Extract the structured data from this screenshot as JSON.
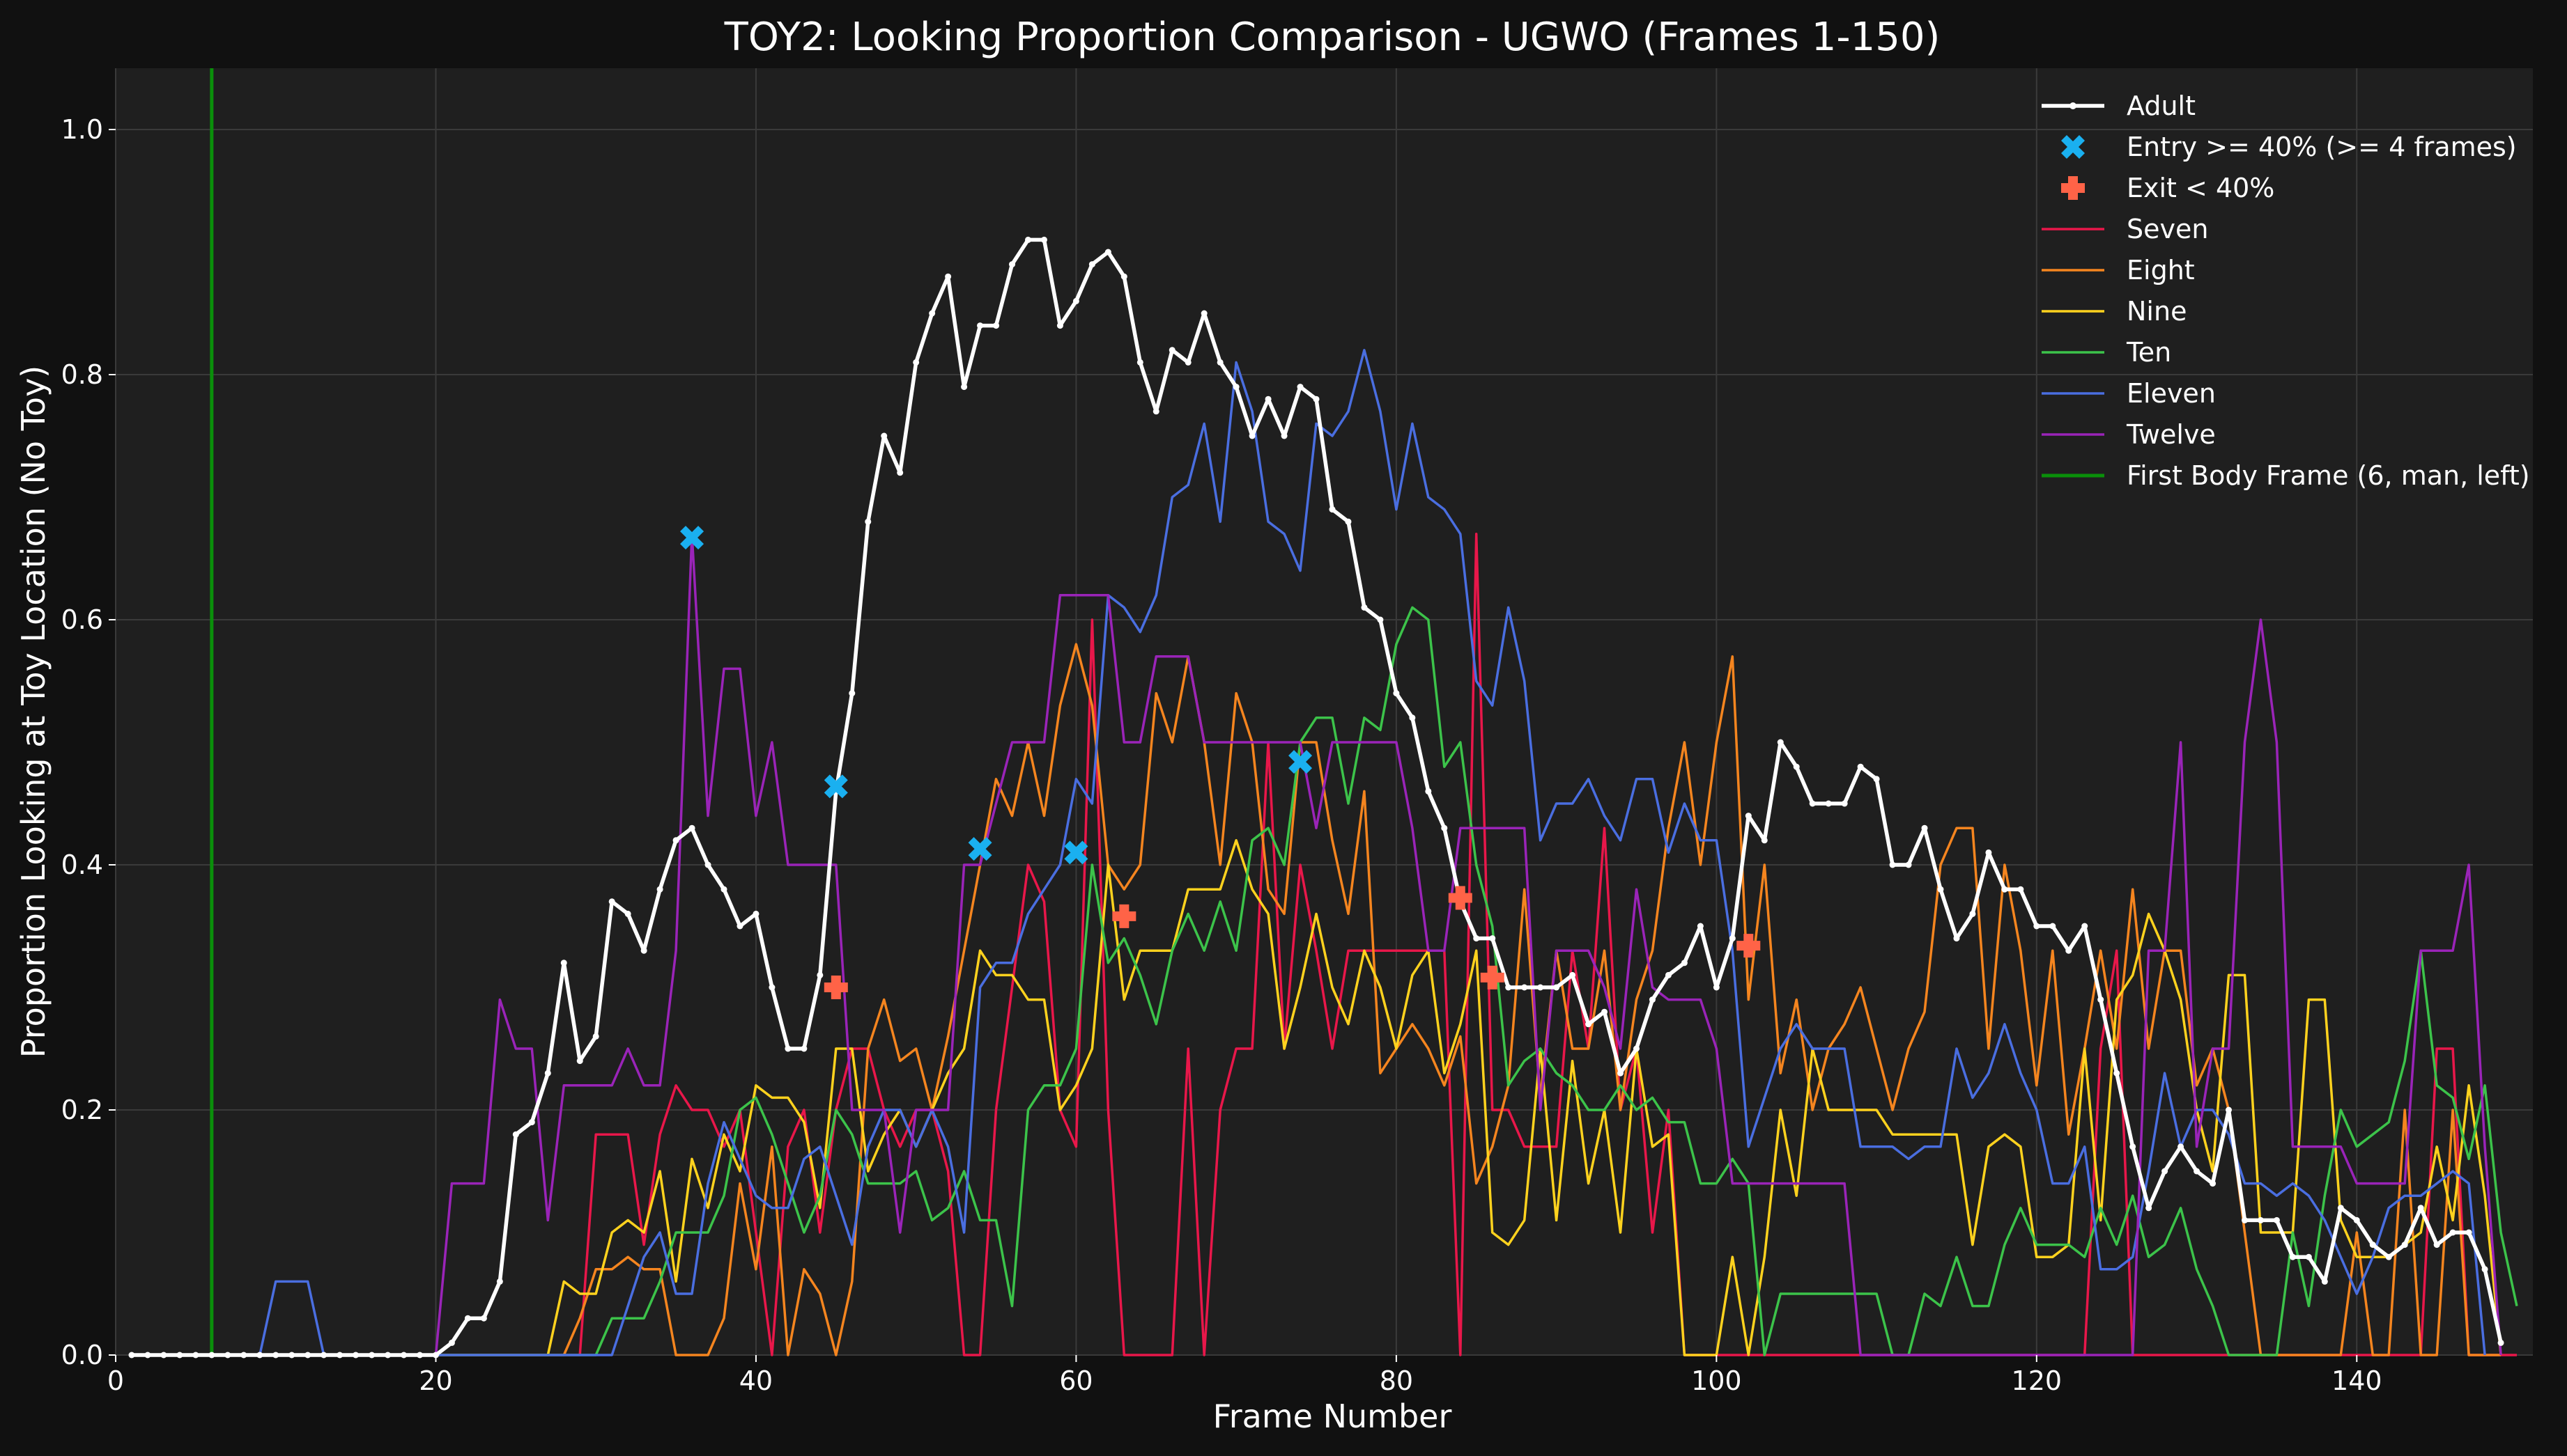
{
  "chart_data": {
    "type": "line",
    "title": "TOY2: Looking Proportion Comparison - UGWO (Frames 1-150)",
    "xlabel": "Frame Number",
    "ylabel": "Proportion Looking at Toy Location (No Toy)",
    "xlim": [
      0,
      151
    ],
    "ylim": [
      0,
      1.05
    ],
    "x_ticks": [
      0,
      20,
      40,
      60,
      80,
      100,
      120,
      140
    ],
    "x_tick_labels": [
      "0",
      "20",
      "40",
      "60",
      "80",
      "100",
      "120",
      "140"
    ],
    "y_ticks": [
      0,
      0.2,
      0.4,
      0.6,
      0.8,
      1.0
    ],
    "y_tick_labels": [
      "0.0",
      "0.2",
      "0.4",
      "0.6",
      "0.8",
      "1.0"
    ],
    "grid": true,
    "legend_position": "top-right",
    "background": "#1f1f1f",
    "adult": {
      "name": "Adult",
      "color": "#ffffff",
      "x_start": 1,
      "values": [
        0,
        0,
        0,
        0,
        0,
        0,
        0,
        0,
        0,
        0,
        0,
        0,
        0,
        0,
        0,
        0,
        0,
        0,
        0,
        0,
        0.01,
        0.03,
        0.03,
        0.06,
        0.18,
        0.19,
        0.23,
        0.32,
        0.24,
        0.26,
        0.37,
        0.36,
        0.33,
        0.38,
        0.42,
        0.43,
        0.4,
        0.38,
        0.35,
        0.36,
        0.3,
        0.25,
        0.25,
        0.31,
        0.46,
        0.54,
        0.68,
        0.75,
        0.72,
        0.81,
        0.85,
        0.88,
        0.79,
        0.84,
        0.84,
        0.89,
        0.91,
        0.91,
        0.84,
        0.86,
        0.89,
        0.9,
        0.88,
        0.81,
        0.77,
        0.82,
        0.81,
        0.85,
        0.81,
        0.79,
        0.75,
        0.78,
        0.75,
        0.79,
        0.78,
        0.69,
        0.68,
        0.61,
        0.6,
        0.54,
        0.52,
        0.46,
        0.43,
        0.37,
        0.34,
        0.34,
        0.3,
        0.3,
        0.3,
        0.3,
        0.31,
        0.27,
        0.28,
        0.23,
        0.25,
        0.29,
        0.31,
        0.32,
        0.35,
        0.3,
        0.34,
        0.44,
        0.42,
        0.5,
        0.48,
        0.45,
        0.45,
        0.45,
        0.48,
        0.47,
        0.4,
        0.4,
        0.43,
        0.38,
        0.34,
        0.36,
        0.41,
        0.38,
        0.38,
        0.35,
        0.35,
        0.33,
        0.35,
        0.29,
        0.23,
        0.17,
        0.12,
        0.15,
        0.17,
        0.15,
        0.14,
        0.2,
        0.11,
        0.11,
        0.11,
        0.08,
        0.08,
        0.06,
        0.12,
        0.11,
        0.09,
        0.08,
        0.09,
        0.12,
        0.09,
        0.1,
        0.1,
        0.07,
        0.01
      ]
    },
    "entry_markers": {
      "name": "Entry >= 40% (>= 4 frames)",
      "color": "#1ab0f0",
      "points": [
        [
          36,
          0.667
        ],
        [
          45,
          0.464
        ],
        [
          54,
          0.413
        ],
        [
          60,
          0.41
        ],
        [
          74,
          0.484
        ]
      ]
    },
    "exit_markers": {
      "name": "Exit < 40%",
      "color": "#ff6347",
      "points": [
        [
          45,
          0.3
        ],
        [
          63,
          0.358
        ],
        [
          84,
          0.373
        ],
        [
          86,
          0.308
        ],
        [
          102,
          0.334
        ]
      ]
    },
    "series": [
      {
        "name": "Seven",
        "color": "#e8174a",
        "x_start": 1,
        "values": [
          0,
          0,
          0,
          0,
          0,
          0,
          0,
          0,
          0,
          0,
          0,
          0,
          0,
          0,
          0,
          0,
          0,
          0,
          0,
          0,
          0,
          0,
          0,
          0,
          0,
          0,
          0,
          0,
          0,
          0.18,
          0.18,
          0.18,
          0.09,
          0.18,
          0.22,
          0.2,
          0.2,
          0.17,
          0.2,
          0.1,
          0,
          0.17,
          0.2,
          0.1,
          0.2,
          0.25,
          0.25,
          0.2,
          0.17,
          0.2,
          0.2,
          0.15,
          0,
          0,
          0.2,
          0.3,
          0.4,
          0.37,
          0.2,
          0.17,
          0.6,
          0.2,
          0,
          0,
          0,
          0,
          0.25,
          0,
          0.2,
          0.25,
          0.25,
          0.5,
          0.25,
          0.4,
          0.33,
          0.25,
          0.33,
          0.33,
          0.33,
          0.33,
          0.33,
          0.33,
          0.33,
          0,
          0.67,
          0.2,
          0.2,
          0.17,
          0.17,
          0.17,
          0.33,
          0.25,
          0.43,
          0.2,
          0.25,
          0.1,
          0.2,
          0,
          0,
          0,
          0,
          0,
          0,
          0,
          0,
          0,
          0,
          0,
          0,
          0,
          0,
          0,
          0,
          0,
          0,
          0,
          0,
          0,
          0,
          0,
          0,
          0,
          0,
          0.25,
          0.33,
          0,
          0,
          0,
          0,
          0,
          0,
          0,
          0,
          0,
          0,
          0,
          0,
          0,
          0,
          0,
          0,
          0,
          0,
          0,
          0.25,
          0.25,
          0,
          0,
          0,
          0
        ]
      },
      {
        "name": "Eight",
        "color": "#f5851f",
        "x_start": 1,
        "values": [
          0,
          0,
          0,
          0,
          0,
          0,
          0,
          0,
          0,
          0,
          0,
          0,
          0,
          0,
          0,
          0,
          0,
          0,
          0,
          0,
          0,
          0,
          0,
          0,
          0,
          0,
          0,
          0,
          0.03,
          0.07,
          0.07,
          0.08,
          0.07,
          0.07,
          0,
          0,
          0,
          0.03,
          0.14,
          0.07,
          0.17,
          0,
          0.07,
          0.05,
          0,
          0.06,
          0.25,
          0.29,
          0.24,
          0.25,
          0.2,
          0.26,
          0.33,
          0.4,
          0.47,
          0.44,
          0.5,
          0.44,
          0.53,
          0.58,
          0.53,
          0.4,
          0.38,
          0.4,
          0.54,
          0.5,
          0.57,
          0.5,
          0.4,
          0.54,
          0.5,
          0.38,
          0.36,
          0.5,
          0.5,
          0.42,
          0.36,
          0.46,
          0.23,
          0.25,
          0.27,
          0.25,
          0.22,
          0.26,
          0.14,
          0.17,
          0.22,
          0.38,
          0.21,
          0.33,
          0.25,
          0.25,
          0.33,
          0.2,
          0.29,
          0.33,
          0.43,
          0.5,
          0.4,
          0.5,
          0.57,
          0.29,
          0.4,
          0.23,
          0.29,
          0.2,
          0.25,
          0.27,
          0.3,
          0.25,
          0.2,
          0.25,
          0.28,
          0.4,
          0.43,
          0.43,
          0.25,
          0.4,
          0.33,
          0.22,
          0.33,
          0.18,
          0.25,
          0.33,
          0.25,
          0.38,
          0.25,
          0.33,
          0.33,
          0.22,
          0.25,
          0.2,
          0.1,
          0,
          0,
          0,
          0,
          0,
          0,
          0.1,
          0,
          0,
          0.2,
          0,
          0,
          0.2,
          0,
          0,
          0
        ]
      },
      {
        "name": "Nine",
        "color": "#ffd21e",
        "x_start": 1,
        "values": [
          0,
          0,
          0,
          0,
          0,
          0,
          0,
          0,
          0,
          0,
          0,
          0,
          0,
          0,
          0,
          0,
          0,
          0,
          0,
          0,
          0,
          0,
          0,
          0,
          0,
          0,
          0,
          0.06,
          0.05,
          0.05,
          0.1,
          0.11,
          0.1,
          0.15,
          0.06,
          0.16,
          0.12,
          0.18,
          0.15,
          0.22,
          0.21,
          0.21,
          0.19,
          0.12,
          0.25,
          0.25,
          0.15,
          0.18,
          0.2,
          0.17,
          0.2,
          0.23,
          0.25,
          0.33,
          0.31,
          0.31,
          0.29,
          0.29,
          0.2,
          0.22,
          0.25,
          0.4,
          0.29,
          0.33,
          0.33,
          0.33,
          0.38,
          0.38,
          0.38,
          0.42,
          0.38,
          0.36,
          0.25,
          0.3,
          0.36,
          0.3,
          0.27,
          0.33,
          0.3,
          0.25,
          0.31,
          0.33,
          0.23,
          0.27,
          0.33,
          0.1,
          0.09,
          0.11,
          0.25,
          0.11,
          0.24,
          0.14,
          0.2,
          0.1,
          0.25,
          0.17,
          0.18,
          0,
          0,
          0,
          0.08,
          0,
          0.08,
          0.2,
          0.13,
          0.25,
          0.2,
          0.2,
          0.2,
          0.2,
          0.18,
          0.18,
          0.18,
          0.18,
          0.18,
          0.09,
          0.17,
          0.18,
          0.17,
          0.08,
          0.08,
          0.09,
          0.25,
          0.11,
          0.29,
          0.31,
          0.36,
          0.33,
          0.29,
          0.2,
          0.15,
          0.31,
          0.31,
          0.1,
          0.1,
          0.1,
          0.29,
          0.29,
          0.11,
          0.08,
          0.08,
          0.08,
          0.09,
          0.1,
          0.17,
          0.11,
          0.22,
          0.13,
          0
        ]
      },
      {
        "name": "Ten",
        "color": "#3cc34a",
        "x_start": 1,
        "values": [
          0,
          0,
          0,
          0,
          0,
          0,
          0,
          0,
          0,
          0,
          0,
          0,
          0,
          0,
          0,
          0,
          0,
          0,
          0,
          0,
          0,
          0,
          0,
          0,
          0,
          0,
          0,
          0,
          0,
          0,
          0.03,
          0.03,
          0.03,
          0.06,
          0.1,
          0.1,
          0.1,
          0.13,
          0.2,
          0.21,
          0.18,
          0.14,
          0.1,
          0.13,
          0.2,
          0.18,
          0.14,
          0.14,
          0.14,
          0.15,
          0.11,
          0.12,
          0.15,
          0.11,
          0.11,
          0.04,
          0.2,
          0.22,
          0.22,
          0.25,
          0.4,
          0.32,
          0.34,
          0.31,
          0.27,
          0.33,
          0.36,
          0.33,
          0.37,
          0.33,
          0.42,
          0.43,
          0.4,
          0.5,
          0.52,
          0.52,
          0.45,
          0.52,
          0.51,
          0.58,
          0.61,
          0.6,
          0.48,
          0.5,
          0.4,
          0.35,
          0.22,
          0.24,
          0.25,
          0.23,
          0.22,
          0.2,
          0.2,
          0.22,
          0.2,
          0.21,
          0.19,
          0.19,
          0.14,
          0.14,
          0.16,
          0.14,
          0,
          0.05,
          0.05,
          0.05,
          0.05,
          0.05,
          0.05,
          0.05,
          0,
          0,
          0.05,
          0.04,
          0.08,
          0.04,
          0.04,
          0.09,
          0.12,
          0.09,
          0.09,
          0.09,
          0.08,
          0.12,
          0.09,
          0.13,
          0.08,
          0.09,
          0.12,
          0.07,
          0.04,
          0,
          0,
          0,
          0,
          0.1,
          0.04,
          0.13,
          0.2,
          0.17,
          0.18,
          0.19,
          0.24,
          0.33,
          0.22,
          0.21,
          0.16,
          0.22,
          0.1,
          0.04
        ]
      },
      {
        "name": "Eleven",
        "color": "#4a6ee0",
        "x_start": 1,
        "values": [
          0,
          0,
          0,
          0,
          0,
          0,
          0,
          0,
          0,
          0.06,
          0.06,
          0.06,
          0,
          0,
          0,
          0,
          0,
          0,
          0,
          0,
          0,
          0,
          0,
          0,
          0,
          0,
          0,
          0,
          0,
          0,
          0,
          0.04,
          0.08,
          0.1,
          0.05,
          0.05,
          0.14,
          0.19,
          0.16,
          0.13,
          0.12,
          0.12,
          0.16,
          0.17,
          0.13,
          0.09,
          0.17,
          0.2,
          0.2,
          0.17,
          0.2,
          0.17,
          0.1,
          0.3,
          0.32,
          0.32,
          0.36,
          0.38,
          0.4,
          0.47,
          0.45,
          0.62,
          0.61,
          0.59,
          0.62,
          0.7,
          0.71,
          0.76,
          0.68,
          0.81,
          0.77,
          0.68,
          0.67,
          0.64,
          0.76,
          0.75,
          0.77,
          0.82,
          0.77,
          0.69,
          0.76,
          0.7,
          0.69,
          0.67,
          0.55,
          0.53,
          0.61,
          0.55,
          0.42,
          0.45,
          0.45,
          0.47,
          0.44,
          0.42,
          0.47,
          0.47,
          0.41,
          0.45,
          0.42,
          0.42,
          0.33,
          0.17,
          0.21,
          0.25,
          0.27,
          0.25,
          0.25,
          0.25,
          0.17,
          0.17,
          0.17,
          0.16,
          0.17,
          0.17,
          0.25,
          0.21,
          0.23,
          0.27,
          0.23,
          0.2,
          0.14,
          0.14,
          0.17,
          0.07,
          0.07,
          0.08,
          0.15,
          0.23,
          0.17,
          0.2,
          0.2,
          0.18,
          0.14,
          0.14,
          0.13,
          0.14,
          0.13,
          0.11,
          0.08,
          0.05,
          0.08,
          0.12,
          0.13,
          0.13,
          0.14,
          0.15,
          0.14,
          0
        ]
      },
      {
        "name": "Twelve",
        "color": "#9a24b8",
        "x_start": 1,
        "values": [
          0,
          0,
          0,
          0,
          0,
          0,
          0,
          0,
          0,
          0,
          0,
          0,
          0,
          0,
          0,
          0,
          0,
          0,
          0,
          0,
          0.14,
          0.14,
          0.14,
          0.29,
          0.25,
          0.25,
          0.11,
          0.22,
          0.22,
          0.22,
          0.22,
          0.25,
          0.22,
          0.22,
          0.33,
          0.67,
          0.44,
          0.56,
          0.56,
          0.44,
          0.5,
          0.4,
          0.4,
          0.4,
          0.4,
          0.2,
          0.2,
          0.2,
          0.1,
          0.2,
          0.2,
          0.2,
          0.4,
          0.4,
          0.45,
          0.5,
          0.5,
          0.5,
          0.62,
          0.62,
          0.62,
          0.62,
          0.5,
          0.5,
          0.57,
          0.57,
          0.57,
          0.5,
          0.5,
          0.5,
          0.5,
          0.5,
          0.5,
          0.5,
          0.43,
          0.5,
          0.5,
          0.5,
          0.5,
          0.5,
          0.43,
          0.33,
          0.33,
          0.43,
          0.43,
          0.43,
          0.43,
          0.43,
          0.2,
          0.33,
          0.33,
          0.33,
          0.3,
          0.25,
          0.38,
          0.3,
          0.29,
          0.29,
          0.29,
          0.25,
          0.14,
          0.14,
          0.14,
          0.14,
          0.14,
          0.14,
          0.14,
          0.14,
          0,
          0,
          0,
          0,
          0,
          0,
          0,
          0,
          0,
          0,
          0,
          0,
          0,
          0,
          0,
          0,
          0,
          0,
          0.33,
          0.33,
          0.5,
          0.17,
          0.25,
          0.25,
          0.5,
          0.6,
          0.5,
          0.17,
          0.17,
          0.17,
          0.17,
          0.14,
          0.14,
          0.14,
          0.14,
          0.33,
          0.33,
          0.33,
          0.4,
          0.17,
          0
        ]
      }
    ],
    "vline": {
      "name": "First Body Frame (6, man, left)",
      "x": 6,
      "color": "#0a8f0a"
    }
  }
}
